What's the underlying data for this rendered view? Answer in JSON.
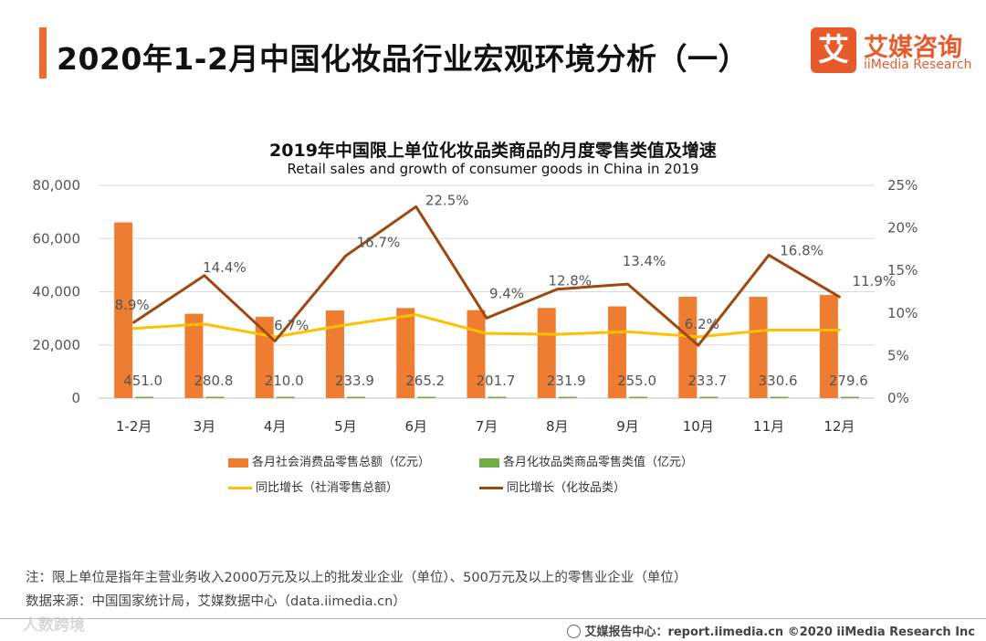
{
  "header": {
    "title": "2020年1-2月中国化妆品行业宏观环境分析（一）",
    "logo_mark": "艾",
    "logo_cn": "艾媒咨询",
    "logo_en": "iiMedia Research"
  },
  "chart_data": {
    "type": "bar",
    "title": "2019年中国限上单位化妆品类商品的月度零售类值及增速",
    "subtitle": "Retail sales and growth of consumer goods in China in 2019",
    "categories": [
      "1-2月",
      "3月",
      "4月",
      "5月",
      "6月",
      "7月",
      "8月",
      "9月",
      "10月",
      "11月",
      "12月"
    ],
    "left_axis": {
      "ylim": [
        0,
        80000
      ],
      "ticks": [
        "0",
        "20,000",
        "40,000",
        "60,000",
        "80,000"
      ]
    },
    "right_axis": {
      "ylim": [
        0,
        25
      ],
      "ticks": [
        "0%",
        "5%",
        "10%",
        "15%",
        "20%",
        "25%"
      ]
    },
    "series": [
      {
        "name": "各月社会消费品零售总额（亿元）",
        "kind": "bar",
        "axis": "left",
        "color": "#ee7d31",
        "values": [
          66064,
          31726,
          30586,
          32956,
          33878,
          33073,
          33896,
          34495,
          38104,
          38094,
          38777
        ]
      },
      {
        "name": "各月化妆品类商品零售类值（亿元）",
        "kind": "bar",
        "axis": "left",
        "color": "#70ad47",
        "values": [
          451.0,
          280.8,
          210.0,
          233.9,
          265.2,
          201.7,
          231.9,
          255.0,
          233.7,
          330.6,
          279.6
        ],
        "labels": [
          "451.0",
          "280.8",
          "210.0",
          "233.9",
          "265.2",
          "201.7",
          "231.9",
          "255.0",
          "233.7",
          "330.6",
          "279.6"
        ]
      },
      {
        "name": "同比增长（社消零售总额）",
        "kind": "line",
        "axis": "right",
        "color": "#ffc000",
        "values": [
          8.2,
          8.7,
          7.2,
          8.6,
          9.8,
          7.6,
          7.5,
          7.8,
          7.2,
          8.0,
          8.0
        ]
      },
      {
        "name": "同比增长（化妆品类）",
        "kind": "line",
        "axis": "right",
        "color": "#9e480e",
        "values": [
          8.9,
          14.4,
          6.7,
          16.7,
          22.5,
          9.4,
          12.8,
          13.4,
          6.2,
          16.8,
          11.9
        ],
        "labels": [
          "8.9%",
          "14.4%",
          "6.7%",
          "16.7%",
          "22.5%",
          "9.4%",
          "12.8%",
          "13.4%",
          "6.2%",
          "16.8%",
          "11.9%"
        ]
      }
    ]
  },
  "notes": {
    "note": "注：限上单位是指年主营业务收入2000万元及以上的批发业企业（单位）、500万元及以上的零售业企业（单位）",
    "source": "数据来源：中国国家统计局，艾媒数据中心（data.iimedia.cn）"
  },
  "footer": {
    "text": "艾媒报告中心：report.iimedia.cn  ©2020  iiMedia Research  Inc",
    "watermark": "　人数跨境"
  }
}
